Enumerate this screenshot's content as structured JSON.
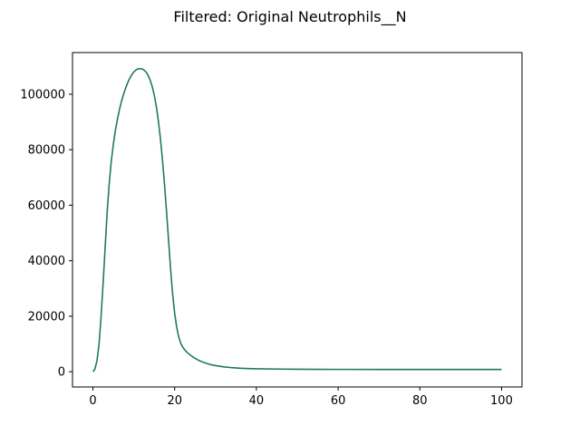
{
  "chart_data": {
    "type": "line",
    "title": "Filtered: Original Neutrophils__N",
    "xlabel": "",
    "ylabel": "",
    "xlim": [
      -5,
      105
    ],
    "ylim": [
      -5500,
      115000
    ],
    "xticks": [
      0,
      20,
      40,
      60,
      80,
      100
    ],
    "yticks": [
      0,
      20000,
      40000,
      60000,
      80000,
      100000
    ],
    "xtick_labels": [
      "0",
      "20",
      "40",
      "60",
      "80",
      "100"
    ],
    "ytick_labels": [
      "0",
      "20000",
      "40000",
      "60000",
      "80000",
      "100000"
    ],
    "grid": false,
    "series": [
      {
        "color": "#1f7a5c",
        "x": [
          0,
          0.5,
          1,
          1.5,
          2,
          2.5,
          3,
          3.5,
          4,
          4.5,
          5,
          5.5,
          6,
          6.5,
          7,
          7.5,
          8,
          8.5,
          9,
          9.5,
          10,
          10.5,
          11,
          11.5,
          12,
          12.5,
          13,
          13.5,
          14,
          14.5,
          15,
          15.5,
          16,
          16.5,
          17,
          17.5,
          18,
          18.5,
          19,
          19.5,
          20,
          20.5,
          21,
          21.5,
          22,
          22.5,
          23,
          23.5,
          24,
          24.5,
          25,
          26,
          27,
          28,
          29,
          30,
          32,
          34,
          36,
          38,
          40,
          45,
          50,
          55,
          60,
          70,
          80,
          90,
          100
        ],
        "y": [
          0,
          1000,
          4000,
          10000,
          20000,
          32000,
          45000,
          58000,
          68000,
          76000,
          82000,
          87000,
          91000,
          94500,
          97500,
          100000,
          102200,
          104100,
          105700,
          107000,
          108000,
          108700,
          109100,
          109200,
          109100,
          108700,
          108000,
          106800,
          105100,
          102800,
          99700,
          95700,
          90500,
          84200,
          76600,
          67800,
          58000,
          47500,
          37000,
          28000,
          21000,
          16000,
          12500,
          10200,
          8800,
          7800,
          7000,
          6400,
          5800,
          5300,
          4800,
          4000,
          3400,
          2900,
          2500,
          2200,
          1750,
          1450,
          1250,
          1130,
          1050,
          950,
          880,
          850,
          830,
          810,
          800,
          800,
          800
        ]
      }
    ]
  }
}
